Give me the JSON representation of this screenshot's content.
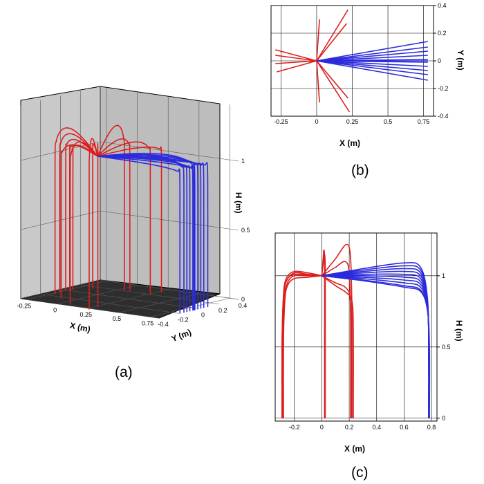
{
  "panels": {
    "a": {
      "label": "(a)"
    },
    "b": {
      "label": "(b)"
    },
    "c": {
      "label": "(c)"
    }
  },
  "chart_data": [
    {
      "type": "line",
      "panel": "a",
      "projection": "3d",
      "xlabel": "X (m)",
      "ylabel": "Y (m)",
      "zlabel": "H (m)",
      "x_ticks": [
        "-0.25",
        "0",
        "0.25",
        "0.5",
        "0.75"
      ],
      "y_ticks": [
        "-0.4",
        "-0.2",
        "0",
        "0.2",
        "0.4"
      ],
      "z_ticks": [
        "0",
        "0.5",
        "1"
      ],
      "xlim": [
        -0.3,
        0.82
      ],
      "ylim": [
        -0.4,
        0.4
      ],
      "zlim": [
        0,
        1.4
      ],
      "colors": {
        "red": "#dc1e1e",
        "blue": "#2b2bdc"
      },
      "source": [
        0,
        0,
        1.0
      ],
      "red_endpoints": [
        [
          -0.29,
          0.08
        ],
        [
          -0.29,
          0.04
        ],
        [
          -0.29,
          -0.02
        ],
        [
          -0.28,
          -0.08
        ],
        [
          -0.28,
          0.1
        ],
        [
          0.02,
          0.3
        ],
        [
          0.02,
          -0.3
        ],
        [
          0.0,
          0.27
        ],
        [
          0.22,
          0.37
        ],
        [
          0.21,
          0.27
        ],
        [
          0.22,
          -0.27
        ],
        [
          0.23,
          -0.37
        ],
        [
          -0.2,
          0.2
        ],
        [
          -0.15,
          -0.18
        ]
      ],
      "blue_endpoints": [
        [
          0.78,
          0.14
        ],
        [
          0.78,
          0.1
        ],
        [
          0.78,
          0.07
        ],
        [
          0.78,
          0.04
        ],
        [
          0.78,
          0.01
        ],
        [
          0.78,
          0.0
        ],
        [
          0.78,
          -0.01
        ],
        [
          0.78,
          -0.04
        ],
        [
          0.78,
          -0.07
        ],
        [
          0.78,
          -0.1
        ],
        [
          0.78,
          -0.14
        ]
      ]
    },
    {
      "type": "line",
      "panel": "b",
      "view": "top (X-Y)",
      "xlabel": "X (m)",
      "ylabel": "Y (m)",
      "x_ticks": [
        "-0.25",
        "0",
        "0.25",
        "0.5",
        "0.75"
      ],
      "y_ticks": [
        "-0.4",
        "-0.2",
        "0",
        "0.2",
        "0.4"
      ],
      "xlim": [
        -0.32,
        0.82
      ],
      "ylim": [
        -0.4,
        0.4
      ],
      "grid": true,
      "series": [
        {
          "color": "#dc1e1e",
          "segments": [
            [
              [
                0,
                0
              ],
              [
                -0.29,
                0.08
              ]
            ],
            [
              [
                0,
                0
              ],
              [
                -0.29,
                0.04
              ]
            ],
            [
              [
                0,
                0
              ],
              [
                -0.29,
                -0.02
              ]
            ],
            [
              [
                0,
                0
              ],
              [
                -0.28,
                -0.08
              ]
            ],
            [
              [
                0,
                0
              ],
              [
                0.02,
                0.3
              ]
            ],
            [
              [
                0,
                0
              ],
              [
                0.02,
                -0.3
              ]
            ],
            [
              [
                0,
                0
              ],
              [
                0.22,
                0.37
              ]
            ],
            [
              [
                0,
                0
              ],
              [
                0.21,
                0.27
              ]
            ],
            [
              [
                0,
                0
              ],
              [
                0.22,
                -0.27
              ]
            ],
            [
              [
                0,
                0
              ],
              [
                0.23,
                -0.37
              ]
            ]
          ]
        },
        {
          "color": "#2b2bdc",
          "segments": [
            [
              [
                0,
                0
              ],
              [
                0.78,
                0.14
              ]
            ],
            [
              [
                0,
                0
              ],
              [
                0.78,
                0.1
              ]
            ],
            [
              [
                0,
                0
              ],
              [
                0.78,
                0.07
              ]
            ],
            [
              [
                0,
                0
              ],
              [
                0.78,
                0.04
              ]
            ],
            [
              [
                0,
                0
              ],
              [
                0.78,
                0.01
              ]
            ],
            [
              [
                0,
                0
              ],
              [
                0.78,
                0.0
              ]
            ],
            [
              [
                0,
                0
              ],
              [
                0.78,
                -0.01
              ]
            ],
            [
              [
                0,
                0
              ],
              [
                0.78,
                -0.04
              ]
            ],
            [
              [
                0,
                0
              ],
              [
                0.78,
                -0.07
              ]
            ],
            [
              [
                0,
                0
              ],
              [
                0.78,
                -0.1
              ]
            ],
            [
              [
                0,
                0
              ],
              [
                0.78,
                -0.14
              ]
            ]
          ]
        }
      ]
    },
    {
      "type": "line",
      "panel": "c",
      "view": "side (X-H)",
      "xlabel": "X (m)",
      "ylabel": "H (m)",
      "x_ticks": [
        "-0.2",
        "0",
        "0.2",
        "0.4",
        "0.6",
        "0.8"
      ],
      "y_ticks": [
        "0",
        "0.5",
        "1"
      ],
      "xlim": [
        -0.34,
        0.84
      ],
      "ylim": [
        -0.02,
        1.3
      ],
      "grid": true,
      "series": [
        {
          "color": "#dc1e1e",
          "curves": [
            [
              [
                0,
                1.0
              ],
              [
                -0.1,
                1.02
              ],
              [
                -0.2,
                1.03
              ],
              [
                -0.26,
                0.98
              ],
              [
                -0.28,
                0.85
              ],
              [
                -0.29,
                0.5
              ],
              [
                -0.29,
                0.0
              ]
            ],
            [
              [
                0,
                1.0
              ],
              [
                -0.1,
                1.01
              ],
              [
                -0.2,
                1.02
              ],
              [
                -0.26,
                0.96
              ],
              [
                -0.28,
                0.85
              ],
              [
                -0.29,
                0.5
              ],
              [
                -0.29,
                0.0
              ]
            ],
            [
              [
                0,
                1.0
              ],
              [
                -0.1,
                1.0
              ],
              [
                -0.2,
                1.0
              ],
              [
                -0.25,
                0.95
              ],
              [
                -0.275,
                0.82
              ],
              [
                -0.28,
                0.5
              ],
              [
                -0.28,
                0.0
              ]
            ],
            [
              [
                0,
                1.0
              ],
              [
                -0.1,
                0.99
              ],
              [
                -0.2,
                0.98
              ],
              [
                -0.25,
                0.93
              ],
              [
                -0.27,
                0.82
              ],
              [
                -0.28,
                0.5
              ],
              [
                -0.28,
                0.0
              ]
            ],
            [
              [
                0,
                1.0
              ],
              [
                -0.1,
                1.005
              ],
              [
                -0.2,
                1.01
              ],
              [
                -0.255,
                0.97
              ],
              [
                -0.275,
                0.86
              ],
              [
                -0.285,
                0.5
              ],
              [
                -0.285,
                0.0
              ]
            ],
            [
              [
                0,
                1.0
              ],
              [
                0.01,
                1.12
              ],
              [
                0.015,
                1.18
              ],
              [
                0.02,
                1.1
              ],
              [
                0.02,
                0.6
              ],
              [
                0.02,
                0.0
              ]
            ],
            [
              [
                0,
                1.0
              ],
              [
                0.012,
                1.1
              ],
              [
                0.02,
                1.15
              ],
              [
                0.025,
                1.05
              ],
              [
                0.025,
                0.6
              ],
              [
                0.025,
                0.0
              ]
            ],
            [
              [
                0,
                1.0
              ],
              [
                0.1,
                1.12
              ],
              [
                0.18,
                1.22
              ],
              [
                0.21,
                1.12
              ],
              [
                0.22,
                0.7
              ],
              [
                0.22,
                0.0
              ]
            ],
            [
              [
                0,
                1.0
              ],
              [
                0.1,
                1.06
              ],
              [
                0.17,
                1.1
              ],
              [
                0.2,
                1.02
              ],
              [
                0.21,
                0.7
              ],
              [
                0.21,
                0.0
              ]
            ],
            [
              [
                0,
                1.0
              ],
              [
                0.1,
                0.95
              ],
              [
                0.17,
                0.92
              ],
              [
                0.205,
                0.85
              ],
              [
                0.215,
                0.6
              ],
              [
                0.215,
                0.0
              ]
            ],
            [
              [
                0,
                1.0
              ],
              [
                0.1,
                0.93
              ],
              [
                0.18,
                0.88
              ],
              [
                0.22,
                0.82
              ],
              [
                0.23,
                0.6
              ],
              [
                0.23,
                0.0
              ]
            ]
          ]
        },
        {
          "color": "#2b2bdc",
          "curves": [
            [
              [
                0,
                1.0
              ],
              [
                0.3,
                1.05
              ],
              [
                0.6,
                1.09
              ],
              [
                0.72,
                1.06
              ],
              [
                0.77,
                0.85
              ],
              [
                0.78,
                0.5
              ],
              [
                0.78,
                0.0
              ]
            ],
            [
              [
                0,
                1.0
              ],
              [
                0.3,
                1.04
              ],
              [
                0.6,
                1.07
              ],
              [
                0.72,
                1.04
              ],
              [
                0.77,
                0.84
              ],
              [
                0.78,
                0.5
              ],
              [
                0.78,
                0.0
              ]
            ],
            [
              [
                0,
                1.0
              ],
              [
                0.3,
                1.03
              ],
              [
                0.6,
                1.05
              ],
              [
                0.72,
                1.02
              ],
              [
                0.77,
                0.83
              ],
              [
                0.78,
                0.5
              ],
              [
                0.78,
                0.0
              ]
            ],
            [
              [
                0,
                1.0
              ],
              [
                0.3,
                1.02
              ],
              [
                0.6,
                1.03
              ],
              [
                0.72,
                1.0
              ],
              [
                0.77,
                0.82
              ],
              [
                0.78,
                0.5
              ],
              [
                0.78,
                0.0
              ]
            ],
            [
              [
                0,
                1.0
              ],
              [
                0.3,
                1.01
              ],
              [
                0.6,
                1.01
              ],
              [
                0.72,
                0.98
              ],
              [
                0.77,
                0.81
              ],
              [
                0.78,
                0.5
              ],
              [
                0.78,
                0.0
              ]
            ],
            [
              [
                0,
                1.0
              ],
              [
                0.3,
                1.0
              ],
              [
                0.6,
                0.99
              ],
              [
                0.72,
                0.96
              ],
              [
                0.77,
                0.8
              ],
              [
                0.78,
                0.5
              ],
              [
                0.78,
                0.0
              ]
            ],
            [
              [
                0,
                1.0
              ],
              [
                0.3,
                0.99
              ],
              [
                0.6,
                0.97
              ],
              [
                0.72,
                0.94
              ],
              [
                0.77,
                0.79
              ],
              [
                0.78,
                0.5
              ],
              [
                0.78,
                0.0
              ]
            ],
            [
              [
                0,
                1.0
              ],
              [
                0.3,
                0.98
              ],
              [
                0.6,
                0.95
              ],
              [
                0.72,
                0.92
              ],
              [
                0.77,
                0.78
              ],
              [
                0.78,
                0.5
              ],
              [
                0.78,
                0.0
              ]
            ],
            [
              [
                0,
                1.0
              ],
              [
                0.3,
                0.97
              ],
              [
                0.6,
                0.93
              ],
              [
                0.72,
                0.9
              ],
              [
                0.77,
                0.77
              ],
              [
                0.78,
                0.5
              ],
              [
                0.78,
                0.0
              ]
            ],
            [
              [
                0,
                1.0
              ],
              [
                0.3,
                0.965
              ],
              [
                0.6,
                0.92
              ],
              [
                0.72,
                0.89
              ],
              [
                0.77,
                0.76
              ],
              [
                0.785,
                0.5
              ],
              [
                0.785,
                0.0
              ]
            ]
          ]
        }
      ]
    }
  ]
}
